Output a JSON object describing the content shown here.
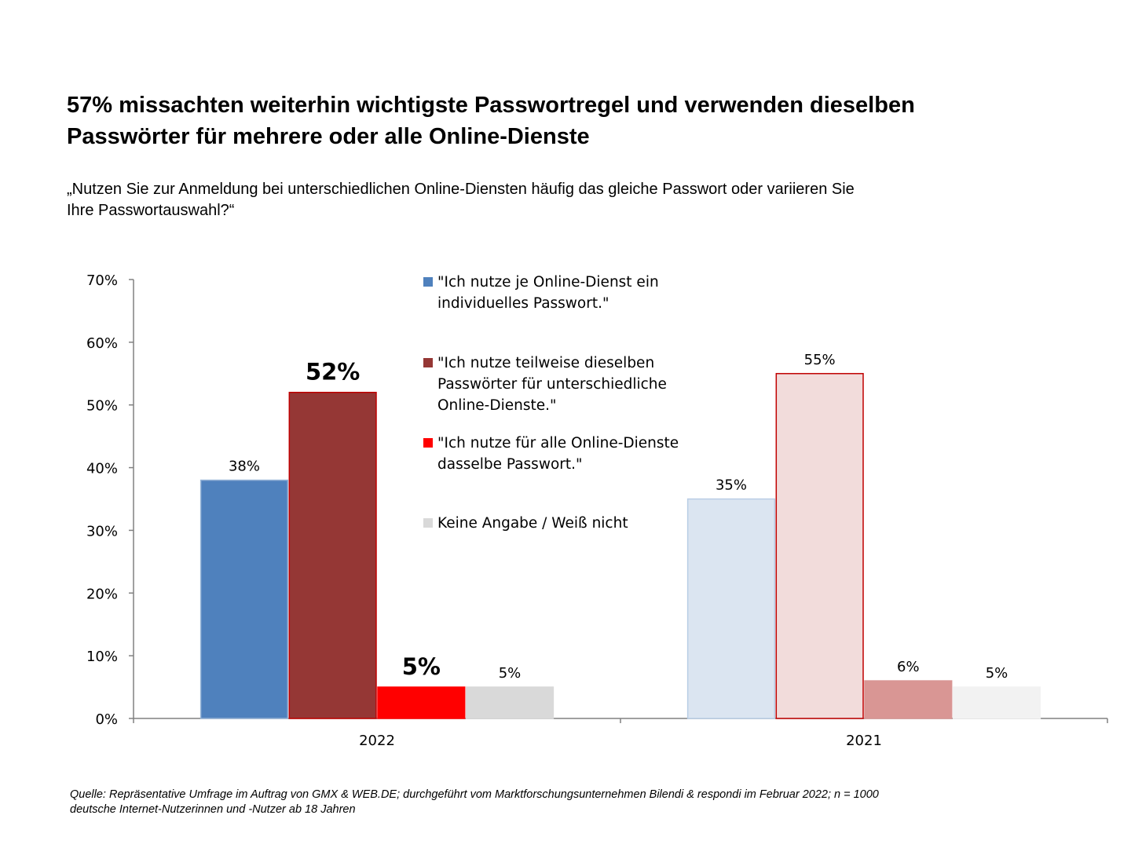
{
  "title": [
    "57% missachten weiterhin wichtigste Passwortregel und verwenden dieselben",
    "Passwörter für mehrere oder alle Online-Dienste"
  ],
  "subtitle": [
    "„Nutzen Sie zur Anmeldung bei unterschiedlichen Online-Diensten häufig das gleiche Passwort oder variieren Sie",
    "Ihre Passwortauswahl?“"
  ],
  "source": [
    "Quelle: Repräsentative Umfrage im Auftrag von GMX & WEB.DE; durchgeführt vom Marktforschungsunternehmen Bilendi & respondi im Februar 2022; n = 1000",
    "deutsche Internet-Nutzerinnen und -Nutzer ab 18 Jahren"
  ],
  "legend": [
    {
      "lines": [
        "\"Ich nutze je Online-Dienst ein",
        "individuelles Passwort.\""
      ],
      "color": "#4F81BD"
    },
    {
      "lines": [
        "\"Ich nutze teilweise dieselben",
        "Passwörter für unterschiedliche",
        "Online-Dienste.\""
      ],
      "color": "#953735"
    },
    {
      "lines": [
        "\"Ich nutze für alle Online-Dienste",
        "dasselbe Passwort.\""
      ],
      "color": "#FF0000"
    },
    {
      "lines": [
        "Keine Angabe / Weiß nicht"
      ],
      "color": "#D9D9D9"
    }
  ],
  "chart_data": {
    "type": "bar",
    "categories": [
      "2022",
      "2021"
    ],
    "ylim": [
      0,
      70
    ],
    "yticks": [
      "0%",
      "10%",
      "20%",
      "30%",
      "40%",
      "50%",
      "60%",
      "70%"
    ],
    "series": [
      {
        "name": "\"Ich nutze je Online-Dienst ein individuelles Passwort.\"",
        "values": [
          38,
          35
        ],
        "labels": [
          "38%",
          "35%"
        ],
        "colors": [
          "#4F81BD",
          "#DBE5F1"
        ],
        "borders": [
          "#95B3D7",
          "#B9CDE5"
        ],
        "bold_label": [
          false,
          false
        ]
      },
      {
        "name": "\"Ich nutze teilweise dieselben Passwörter für unterschiedliche Online-Dienste.\"",
        "values": [
          52,
          55
        ],
        "labels": [
          "52%",
          "55%"
        ],
        "colors": [
          "#953735",
          "#F2DCDB"
        ],
        "borders": [
          "#C00000",
          "#C00000"
        ],
        "bold_label": [
          true,
          false
        ]
      },
      {
        "name": "\"Ich nutze für alle Online-Dienste dasselbe Passwort.\"",
        "values": [
          5,
          6
        ],
        "labels": [
          "5%",
          "6%"
        ],
        "colors": [
          "#FF0000",
          "#D99694"
        ],
        "borders": [
          "#FF0000",
          "#D99694"
        ],
        "bold_label": [
          true,
          false
        ]
      },
      {
        "name": "Keine Angabe / Weiß nicht",
        "values": [
          5,
          5
        ],
        "labels": [
          "5%",
          "5%"
        ],
        "colors": [
          "#D9D9D9",
          "#F2F2F2"
        ],
        "borders": [
          "#D9D9D9",
          "#F2F2F2"
        ],
        "bold_label": [
          false,
          false
        ]
      }
    ],
    "grid": false,
    "legend_position": "top-center"
  }
}
